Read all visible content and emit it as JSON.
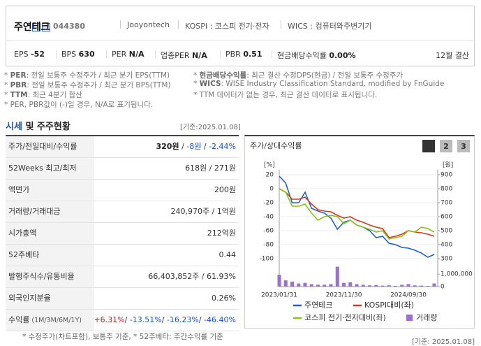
{
  "header": {
    "name": "주연테크",
    "code": "044380",
    "eng": "Jooyontech",
    "market": "KOSPI : 코스피 전기·전자",
    "wics": "WICS : 컴퓨터와주변기기",
    "metrics": [
      {
        "label": "EPS",
        "value": -52
      },
      {
        "label": "BPS",
        "value": 630
      },
      {
        "label": "PER",
        "value": "N/A"
      },
      {
        "label": "업종PER",
        "value": "N/A"
      },
      {
        "label": "PBR",
        "value": 0.51
      },
      {
        "label": "현금배당수익률",
        "value": "0.00%"
      }
    ],
    "settle": "12월 결산"
  },
  "notes_left": [
    {
      "lead": "* ",
      "term": "PER",
      "text": ": 전일 보통주 수정주가 / 최근 분기 EPS(TTM)"
    },
    {
      "lead": "* ",
      "term": "PBR",
      "text": ": 전일 보통주 수정주가 / 최근 분기 BPS(TTM)"
    },
    {
      "lead": "* ",
      "term": "TTM",
      "text": ": 최근 4분기 합산"
    },
    {
      "lead": "* ",
      "term": "",
      "text": "PER, PBR값이 (-)일 경우, N/A로 표기됩니다."
    }
  ],
  "notes_right": [
    {
      "lead": "* ",
      "term": "현금배당수익률",
      "text": ": 최근 결산 수정DPS(현금) / 전일 보통주 수정주가"
    },
    {
      "lead": "* ",
      "term": "WICS",
      "text": ": WISE Industry Classification Standard, modified by FnGuide"
    },
    {
      "lead": "* ",
      "term": "",
      "text": "TTM 데이터가 없는 경우, 최근 결산 데이터로 표시됩니다."
    }
  ],
  "section": {
    "title_a": "시세",
    "title_b": " 및 주주현황",
    "date": "[기준:2025.01.08]"
  },
  "table": {
    "rows": [
      {
        "label": "주가/전일대비/수익률",
        "value": [
          {
            "text": "320원",
            "style": "bold"
          },
          {
            "text": " / "
          },
          {
            "text": "-8원",
            "style": "down"
          },
          {
            "text": " / "
          },
          {
            "text": "-2.44%",
            "style": "down"
          }
        ]
      },
      {
        "label": "52Weeks 최고/최저",
        "value": [
          {
            "text": "618원 / 271원"
          }
        ]
      },
      {
        "label": "액면가",
        "value": [
          {
            "text": "200원"
          }
        ]
      },
      {
        "label": "거래량/거래대금",
        "value": [
          {
            "text": "240,970주 / 1억원"
          }
        ]
      },
      {
        "label": "시가총액",
        "value": [
          {
            "text": "212억원"
          }
        ]
      },
      {
        "label": "52주베타",
        "value": [
          {
            "text": "0.44"
          }
        ]
      },
      {
        "label": "발행주식수/유통비율",
        "value": [
          {
            "text": "66,403,852주 / 61.93%"
          }
        ]
      },
      {
        "label": "외국인지분율",
        "value": [
          {
            "text": "0.26%"
          }
        ]
      },
      {
        "label": "수익률",
        "sub": " (1M/3M/6M/1Y)",
        "value": [
          {
            "text": "+6.31%",
            "style": "up"
          },
          {
            "text": "/ "
          },
          {
            "text": "-13.51%",
            "style": "down"
          },
          {
            "text": "/ "
          },
          {
            "text": "-16.23%",
            "style": "down"
          },
          {
            "text": "/ "
          },
          {
            "text": "-46.40%",
            "style": "down"
          }
        ]
      }
    ]
  },
  "chart_data": {
    "type": "line",
    "title": "주가/상대수익률",
    "tabs": [
      "1",
      "2",
      "3"
    ],
    "ylabel": "[%]",
    "y2label": "[원]",
    "categories": [
      "2023/01/31",
      null,
      null,
      null,
      null,
      null,
      null,
      null,
      null,
      null,
      "2023/11/30",
      null,
      null,
      null,
      null,
      null,
      null,
      null,
      null,
      null,
      "2024/09/30",
      null,
      null,
      null,
      null
    ],
    "ylim": [
      -100,
      20
    ],
    "yticks": [
      20,
      0,
      -20,
      -40,
      -60,
      -80,
      -100
    ],
    "y2lim": [
      300,
      900
    ],
    "y2ticks": [
      900,
      800,
      700,
      600,
      500,
      400,
      300
    ],
    "series": [
      {
        "name": "주연테크",
        "color": "#1f5fd6",
        "axis": "y2",
        "values": [
          890,
          840,
          700,
          700,
          775,
          660,
          640,
          625,
          590,
          510,
          560,
          575,
          540,
          525,
          500,
          450,
          460,
          410,
          400,
          380,
          375,
          360,
          340,
          310,
          330
        ]
      },
      {
        "name": "KOSPI대비(좌)",
        "color": "#d23a1e",
        "values": [
          0,
          -5,
          -15,
          -15,
          -12,
          -22,
          -30,
          -32,
          -33,
          -38,
          -42,
          -40,
          -45,
          -48,
          -52,
          -55,
          -57,
          -70,
          -68,
          -65,
          -60,
          -62,
          -63,
          -65,
          -68
        ]
      },
      {
        "name": "코스피 전기·전자대비(좌)",
        "color": "#8cc21a",
        "values": [
          0,
          -5,
          -25,
          -25,
          -22,
          -35,
          -45,
          -40,
          -38,
          -40,
          -50,
          -45,
          -52,
          -55,
          -58,
          -62,
          -60,
          -72,
          -70,
          -68,
          -60,
          -62,
          -55,
          -57,
          -62
        ]
      }
    ],
    "volume": {
      "name": "거래량",
      "color": "#9a6fd6",
      "values": [
        950000,
        500000,
        400000,
        250000,
        300000,
        200000,
        150000,
        150000,
        200000,
        1600000,
        300000,
        350000,
        200000,
        150000,
        100000,
        120000,
        80000,
        100000,
        60000,
        150000,
        200000,
        100000,
        80000,
        50000,
        250000
      ]
    },
    "yvlim": [
      0,
      1800000
    ],
    "yvticks": [
      0,
      {
        "value": 1000000,
        "label": "1,000,000"
      }
    ]
  },
  "footer": {
    "note": "* 수정주가(차트포함), 보통주 기준, * 52주베타: 주간수익률 기준",
    "date": "[기준: 2025.01.08]"
  }
}
